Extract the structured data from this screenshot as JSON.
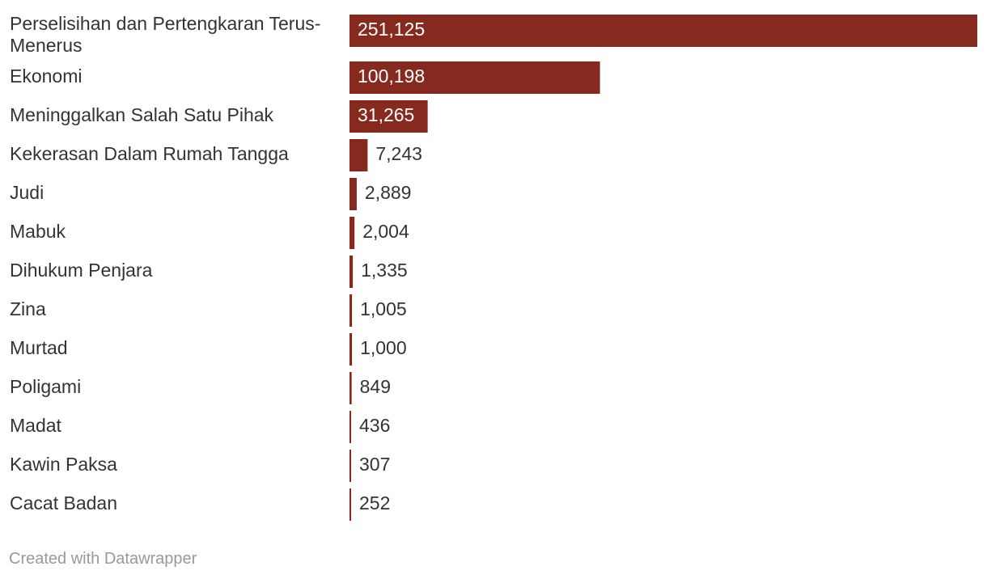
{
  "chart_data": {
    "type": "bar",
    "orientation": "horizontal",
    "categories": [
      "Perselisihan dan Pertengkaran Terus-Menerus",
      "Ekonomi",
      "Meninggalkan Salah Satu Pihak",
      "Kekerasan Dalam Rumah Tangga",
      "Judi",
      "Mabuk",
      "Dihukum Penjara",
      "Zina",
      "Murtad",
      "Poligami",
      "Madat",
      "Kawin Paksa",
      "Cacat Badan"
    ],
    "values": [
      251125,
      100198,
      31265,
      7243,
      2889,
      2004,
      1335,
      1005,
      1000,
      849,
      436,
      307,
      252
    ],
    "value_labels": [
      "251,125",
      "100,198",
      "31,265",
      "7,243",
      "2,889",
      "2,004",
      "1,335",
      "1,005",
      "1,000",
      "849",
      "436",
      "307",
      "252"
    ],
    "xlim": [
      0,
      251125
    ],
    "bar_color": "#862a1f",
    "grid": false,
    "legend": "none"
  },
  "footer": {
    "credit": "Created with Datawrapper"
  }
}
